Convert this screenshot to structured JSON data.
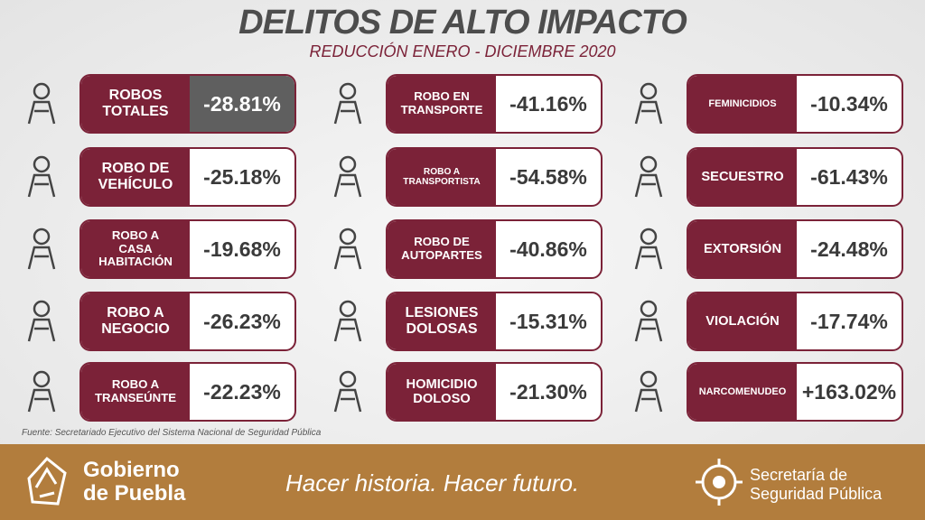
{
  "header": {
    "title": "DELITOS DE ALTO IMPACTO",
    "subtitle": "REDUCCIÓN ENERO - DICIEMBRE 2020"
  },
  "columns": [
    {
      "items": [
        {
          "label": [
            "ROBOS",
            "TOTALES"
          ],
          "value": "-28.81%",
          "highlight": true
        },
        {
          "label": [
            "ROBO DE",
            "VEHÍCULO"
          ],
          "value": "-25.18%"
        },
        {
          "label": [
            "ROBO A",
            "CASA",
            "HABITACIÓN"
          ],
          "value": "-19.68%"
        },
        {
          "label": [
            "ROBO A",
            "NEGOCIO"
          ],
          "value": "-26.23%"
        },
        {
          "label": [
            "ROBO A",
            "TRANSEÚNTE"
          ],
          "value": "-22.23%"
        }
      ]
    },
    {
      "items": [
        {
          "label": [
            "ROBO EN",
            "TRANSPORTE"
          ],
          "value": "-41.16%"
        },
        {
          "label": [
            "ROBO A",
            "TRANSPORTISTA"
          ],
          "value": "-54.58%"
        },
        {
          "label": [
            "ROBO DE",
            "AUTOPARTES"
          ],
          "value": "-40.86%"
        },
        {
          "label": [
            "LESIONES",
            "DOLOSAS"
          ],
          "value": "-15.31%"
        },
        {
          "label": [
            "HOMICIDIO",
            "DOLOSO"
          ],
          "value": "-21.30%"
        }
      ]
    },
    {
      "items": [
        {
          "label": [
            "FEMINICIDIOS"
          ],
          "value": "-10.34%"
        },
        {
          "label": [
            "SECUESTRO"
          ],
          "value": "-61.43%"
        },
        {
          "label": [
            "EXTORSIÓN"
          ],
          "value": "-24.48%"
        },
        {
          "label": [
            "VIOLACIÓN"
          ],
          "value": "-17.74%"
        },
        {
          "label": [
            "NARCOMENUDEO"
          ],
          "value": "+163.02%"
        }
      ]
    }
  ],
  "source": "Fuente: Secretariado Ejecutivo del Sistema Nacional de Seguridad Pública",
  "footer": {
    "brand": [
      "Gobierno",
      "de Puebla"
    ],
    "slogan": "Hacer historia. Hacer futuro.",
    "agency": [
      "Secretaría de",
      "Seguridad Pública"
    ]
  }
}
